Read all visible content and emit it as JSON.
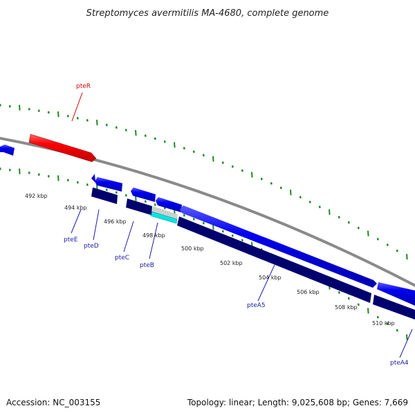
{
  "title": "Streptomyces avermitilis MA-4680, complete genome",
  "footer": {
    "accession": "Accession: NC_003155",
    "topology": "Topology: linear; Length: 9,025,608 bp; Genes: 7,669"
  },
  "scale_labels": [
    "492 kbp",
    "494 kbp",
    "496 kbp",
    "498 kbp",
    "500 kbp",
    "502 kbp",
    "504 kbp",
    "506 kbp",
    "508 kbp",
    "510 kbp"
  ],
  "gene_labels": [
    "pteR",
    "pteE",
    "pteD",
    "pteC",
    "pteB",
    "pteA5",
    "pteA4"
  ],
  "colors": {
    "forward_gene": "#0000ee",
    "reverse_gene": "#0000ee",
    "regulator_gene": "#ff0000",
    "cds_track": "#00006e",
    "highlight": "#00e5e5",
    "backbone": "#8a8a8a",
    "tick": "#1d8a1d",
    "label_blue": "#1a1aa6",
    "label_red": "#cc0000"
  },
  "icons": [
    "arrow-gene-icon"
  ]
}
